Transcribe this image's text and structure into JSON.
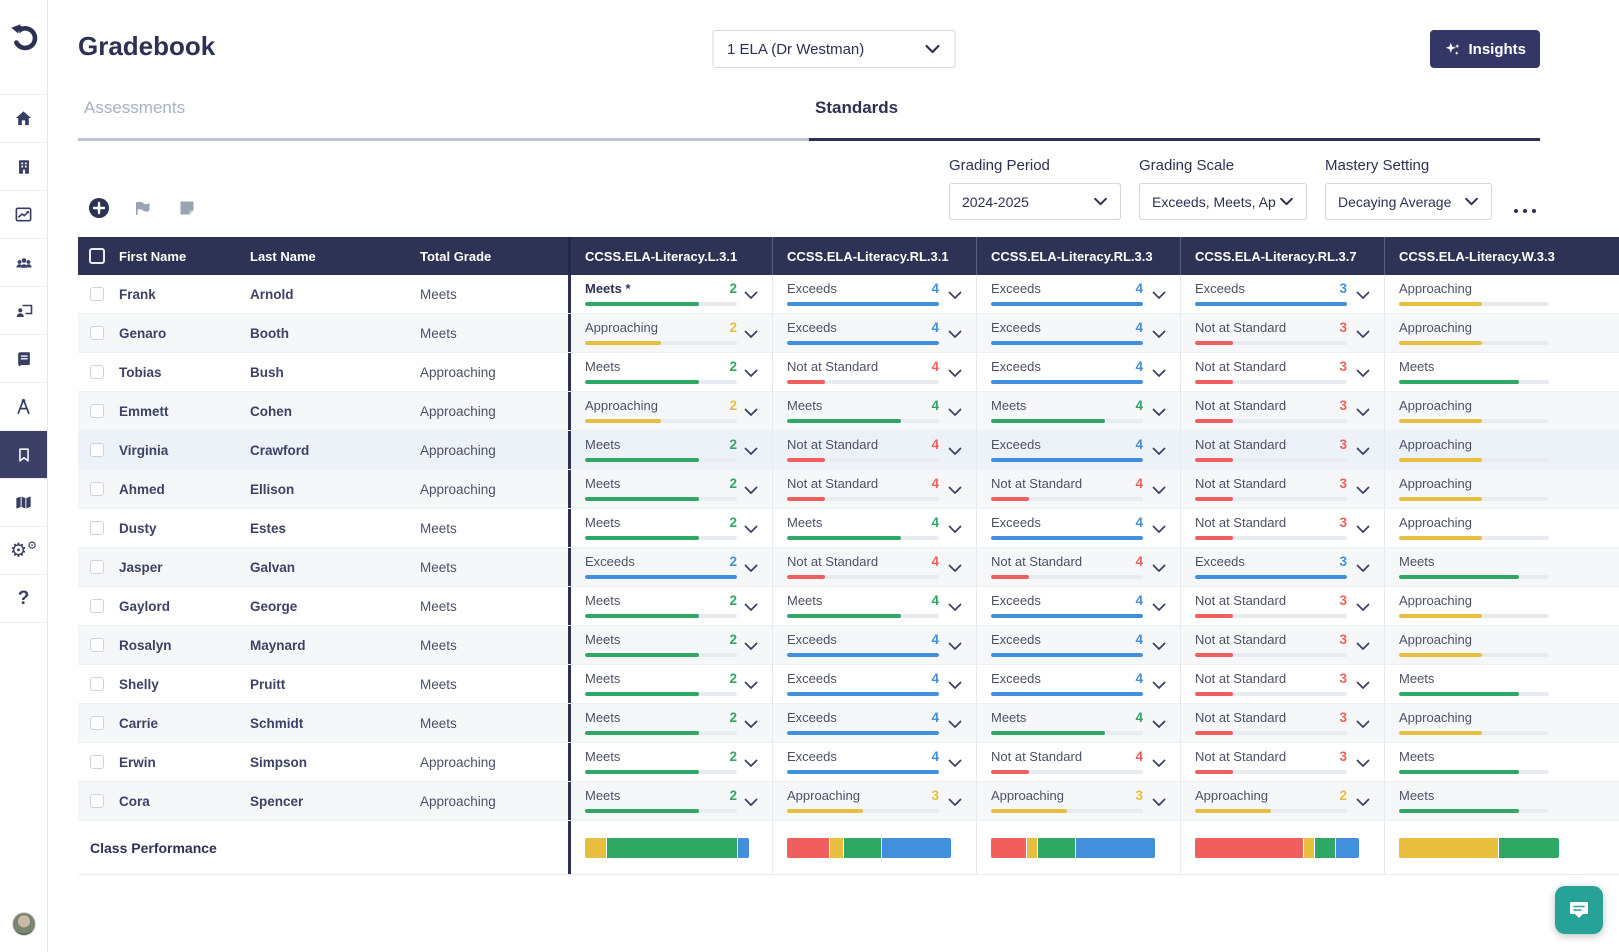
{
  "header": {
    "title": "Gradebook",
    "class_selector_value": "1  ELA (Dr  Westman)",
    "insights_label": "Insights"
  },
  "tabs": {
    "assessments": "Assessments",
    "standards": "Standards"
  },
  "filters": {
    "grading_period": {
      "label": "Grading Period",
      "value": "2024-2025"
    },
    "grading_scale": {
      "label": "Grading Scale",
      "value": "Exceeds, Meets, Ap"
    },
    "mastery_setting": {
      "label": "Mastery Setting",
      "value": "Decaying Average"
    }
  },
  "colors": {
    "green": "#2fa765",
    "yellow": "#e8be3f",
    "blue": "#428fdb",
    "red": "#f15e5e",
    "navy": "#2d3154"
  },
  "table": {
    "columns": [
      "First Name",
      "Last Name",
      "Total Grade",
      "CCSS.ELA-Literacy.L.3.1",
      "CCSS.ELA-Literacy.RL.3.1",
      "CCSS.ELA-Literacy.RL.3.3",
      "CCSS.ELA-Literacy.RL.3.7",
      "CCSS.ELA-Literacy.W.3.3"
    ],
    "rows": [
      {
        "first": "Frank",
        "last": "Arnold",
        "total": "Meets",
        "highlight": false,
        "cells": [
          {
            "label": "Meets *",
            "value": "2",
            "level": "green",
            "pct": 75,
            "em": true
          },
          {
            "label": "Exceeds",
            "value": "4",
            "level": "blue",
            "pct": 100
          },
          {
            "label": "Exceeds",
            "value": "4",
            "level": "blue",
            "pct": 100
          },
          {
            "label": "Exceeds",
            "value": "3",
            "level": "blue",
            "pct": 100
          },
          {
            "label": "Approaching",
            "level": "yellow",
            "pct": 55
          }
        ]
      },
      {
        "first": "Genaro",
        "last": "Booth",
        "total": "Meets",
        "highlight": false,
        "cells": [
          {
            "label": "Approaching",
            "value": "2",
            "level": "yellow",
            "pct": 50
          },
          {
            "label": "Exceeds",
            "value": "4",
            "level": "blue",
            "pct": 100
          },
          {
            "label": "Exceeds",
            "value": "4",
            "level": "blue",
            "pct": 100
          },
          {
            "label": "Not at Standard",
            "value": "3",
            "level": "red",
            "pct": 25
          },
          {
            "label": "Approaching",
            "level": "yellow",
            "pct": 55
          }
        ]
      },
      {
        "first": "Tobias",
        "last": "Bush",
        "total": "Approaching",
        "highlight": false,
        "cells": [
          {
            "label": "Meets",
            "value": "2",
            "level": "green",
            "pct": 75
          },
          {
            "label": "Not at Standard",
            "value": "4",
            "level": "red",
            "pct": 25
          },
          {
            "label": "Exceeds",
            "value": "4",
            "level": "blue",
            "pct": 100
          },
          {
            "label": "Not at Standard",
            "value": "3",
            "level": "red",
            "pct": 25
          },
          {
            "label": "Meets",
            "level": "green",
            "pct": 80
          }
        ]
      },
      {
        "first": "Emmett",
        "last": "Cohen",
        "total": "Approaching",
        "highlight": false,
        "cells": [
          {
            "label": "Approaching",
            "value": "2",
            "level": "yellow",
            "pct": 50
          },
          {
            "label": "Meets",
            "value": "4",
            "level": "green",
            "pct": 75
          },
          {
            "label": "Meets",
            "value": "4",
            "level": "green",
            "pct": 75
          },
          {
            "label": "Not at Standard",
            "value": "3",
            "level": "red",
            "pct": 25
          },
          {
            "label": "Approaching",
            "level": "yellow",
            "pct": 55
          }
        ]
      },
      {
        "first": "Virginia",
        "last": "Crawford",
        "total": "Approaching",
        "highlight": true,
        "cells": [
          {
            "label": "Meets",
            "value": "2",
            "level": "green",
            "pct": 75
          },
          {
            "label": "Not at Standard",
            "value": "4",
            "level": "red",
            "pct": 25
          },
          {
            "label": "Exceeds",
            "value": "4",
            "level": "blue",
            "pct": 100
          },
          {
            "label": "Not at Standard",
            "value": "3",
            "level": "red",
            "pct": 25
          },
          {
            "label": "Approaching",
            "level": "yellow",
            "pct": 55
          }
        ]
      },
      {
        "first": "Ahmed",
        "last": "Ellison",
        "total": "Approaching",
        "highlight": false,
        "cells": [
          {
            "label": "Meets",
            "value": "2",
            "level": "green",
            "pct": 75
          },
          {
            "label": "Not at Standard",
            "value": "4",
            "level": "red",
            "pct": 25
          },
          {
            "label": "Not at Standard",
            "value": "4",
            "level": "red",
            "pct": 25
          },
          {
            "label": "Not at Standard",
            "value": "3",
            "level": "red",
            "pct": 25
          },
          {
            "label": "Approaching",
            "level": "yellow",
            "pct": 55
          }
        ]
      },
      {
        "first": "Dusty",
        "last": "Estes",
        "total": "Meets",
        "highlight": false,
        "cells": [
          {
            "label": "Meets",
            "value": "2",
            "level": "green",
            "pct": 75
          },
          {
            "label": "Meets",
            "value": "4",
            "level": "green",
            "pct": 75
          },
          {
            "label": "Exceeds",
            "value": "4",
            "level": "blue",
            "pct": 100
          },
          {
            "label": "Not at Standard",
            "value": "3",
            "level": "red",
            "pct": 25
          },
          {
            "label": "Approaching",
            "level": "yellow",
            "pct": 55
          }
        ]
      },
      {
        "first": "Jasper",
        "last": "Galvan",
        "total": "Meets",
        "highlight": false,
        "cells": [
          {
            "label": "Exceeds",
            "value": "2",
            "level": "blue",
            "pct": 100
          },
          {
            "label": "Not at Standard",
            "value": "4",
            "level": "red",
            "pct": 25
          },
          {
            "label": "Not at Standard",
            "value": "4",
            "level": "red",
            "pct": 25
          },
          {
            "label": "Exceeds",
            "value": "3",
            "level": "blue",
            "pct": 100
          },
          {
            "label": "Meets",
            "level": "green",
            "pct": 80
          }
        ]
      },
      {
        "first": "Gaylord",
        "last": "George",
        "total": "Meets",
        "highlight": false,
        "cells": [
          {
            "label": "Meets",
            "value": "2",
            "level": "green",
            "pct": 75
          },
          {
            "label": "Meets",
            "value": "4",
            "level": "green",
            "pct": 75
          },
          {
            "label": "Exceeds",
            "value": "4",
            "level": "blue",
            "pct": 100
          },
          {
            "label": "Not at Standard",
            "value": "3",
            "level": "red",
            "pct": 25
          },
          {
            "label": "Approaching",
            "level": "yellow",
            "pct": 55
          }
        ]
      },
      {
        "first": "Rosalyn",
        "last": "Maynard",
        "total": "Meets",
        "highlight": false,
        "cells": [
          {
            "label": "Meets",
            "value": "2",
            "level": "green",
            "pct": 75
          },
          {
            "label": "Exceeds",
            "value": "4",
            "level": "blue",
            "pct": 100
          },
          {
            "label": "Exceeds",
            "value": "4",
            "level": "blue",
            "pct": 100
          },
          {
            "label": "Not at Standard",
            "value": "3",
            "level": "red",
            "pct": 25
          },
          {
            "label": "Approaching",
            "level": "yellow",
            "pct": 55
          }
        ]
      },
      {
        "first": "Shelly",
        "last": "Pruitt",
        "total": "Meets",
        "highlight": false,
        "cells": [
          {
            "label": "Meets",
            "value": "2",
            "level": "green",
            "pct": 75
          },
          {
            "label": "Exceeds",
            "value": "4",
            "level": "blue",
            "pct": 100
          },
          {
            "label": "Exceeds",
            "value": "4",
            "level": "blue",
            "pct": 100
          },
          {
            "label": "Not at Standard",
            "value": "3",
            "level": "red",
            "pct": 25
          },
          {
            "label": "Meets",
            "level": "green",
            "pct": 80
          }
        ]
      },
      {
        "first": "Carrie",
        "last": "Schmidt",
        "total": "Meets",
        "highlight": false,
        "cells": [
          {
            "label": "Meets",
            "value": "2",
            "level": "green",
            "pct": 75
          },
          {
            "label": "Exceeds",
            "value": "4",
            "level": "blue",
            "pct": 100
          },
          {
            "label": "Meets",
            "value": "4",
            "level": "green",
            "pct": 75
          },
          {
            "label": "Not at Standard",
            "value": "3",
            "level": "red",
            "pct": 25
          },
          {
            "label": "Approaching",
            "level": "yellow",
            "pct": 55
          }
        ]
      },
      {
        "first": "Erwin",
        "last": "Simpson",
        "total": "Approaching",
        "highlight": false,
        "cells": [
          {
            "label": "Meets",
            "value": "2",
            "level": "green",
            "pct": 75
          },
          {
            "label": "Exceeds",
            "value": "4",
            "level": "blue",
            "pct": 100
          },
          {
            "label": "Not at Standard",
            "value": "4",
            "level": "red",
            "pct": 25
          },
          {
            "label": "Not at Standard",
            "value": "3",
            "level": "red",
            "pct": 25
          },
          {
            "label": "Meets",
            "level": "green",
            "pct": 80
          }
        ]
      },
      {
        "first": "Cora",
        "last": "Spencer",
        "total": "Approaching",
        "highlight": false,
        "cells": [
          {
            "label": "Meets",
            "value": "2",
            "level": "green",
            "pct": 75
          },
          {
            "label": "Approaching",
            "value": "3",
            "level": "yellow",
            "pct": 50
          },
          {
            "label": "Approaching",
            "value": "3",
            "level": "yellow",
            "pct": 50
          },
          {
            "label": "Approaching",
            "value": "2",
            "level": "yellow",
            "pct": 50
          },
          {
            "label": "Meets",
            "level": "green",
            "pct": 80
          }
        ]
      }
    ],
    "class_performance": {
      "label": "Class Performance",
      "bars": [
        [
          {
            "level": "yellow",
            "pct": 13
          },
          {
            "level": "green",
            "pct": 80
          },
          {
            "level": "blue",
            "pct": 7
          }
        ],
        [
          {
            "level": "red",
            "pct": 26
          },
          {
            "level": "yellow",
            "pct": 8
          },
          {
            "level": "green",
            "pct": 23
          },
          {
            "level": "blue",
            "pct": 43
          }
        ],
        [
          {
            "level": "red",
            "pct": 22
          },
          {
            "level": "yellow",
            "pct": 6
          },
          {
            "level": "green",
            "pct": 23
          },
          {
            "level": "blue",
            "pct": 49
          }
        ],
        [
          {
            "level": "red",
            "pct": 67
          },
          {
            "level": "yellow",
            "pct": 6
          },
          {
            "level": "green",
            "pct": 13
          },
          {
            "level": "blue",
            "pct": 14
          }
        ],
        [
          {
            "level": "yellow",
            "pct": 62
          },
          {
            "level": "green",
            "pct": 38
          }
        ]
      ]
    }
  }
}
